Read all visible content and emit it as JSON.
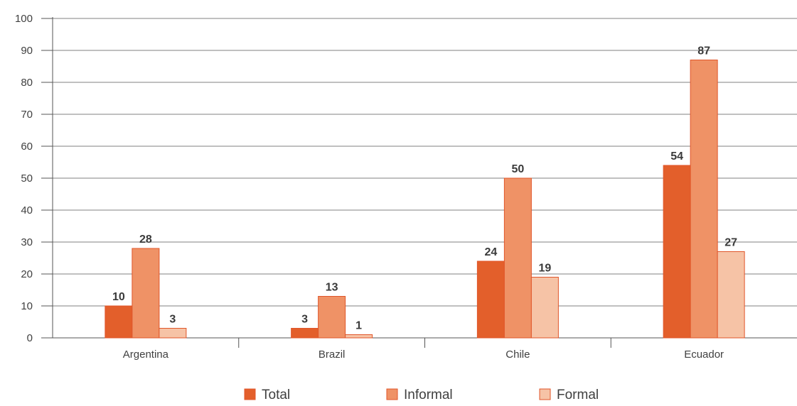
{
  "chart_data": {
    "type": "bar",
    "categories": [
      "Argentina",
      "Brazil",
      "Chile",
      "Ecuador"
    ],
    "series": [
      {
        "name": "Total",
        "values": [
          10,
          3,
          24,
          54
        ],
        "color": "#e35f2b"
      },
      {
        "name": "Informal",
        "values": [
          28,
          13,
          50,
          87
        ],
        "color": "#ef9266"
      },
      {
        "name": "Formal",
        "values": [
          3,
          1,
          19,
          27
        ],
        "color": "#f6c3a6"
      }
    ],
    "data_labels": [
      [
        "10",
        "3",
        "24",
        "54"
      ],
      [
        "28",
        "13",
        "50",
        "87"
      ],
      [
        "3",
        "1",
        "19",
        "27"
      ]
    ],
    "y_ticks": [
      0,
      10,
      20,
      30,
      40,
      50,
      60,
      70,
      80,
      90,
      100
    ],
    "ylim": [
      0,
      100
    ],
    "grid": true,
    "legend_position": "bottom",
    "bar_stroke": "#e0562a",
    "grid_color": "#808080",
    "title": "",
    "xlabel": "",
    "ylabel": ""
  }
}
